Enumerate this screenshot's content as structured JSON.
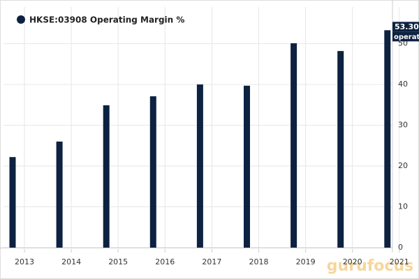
{
  "chart_data": {
    "type": "bar",
    "categories": [
      null,
      null,
      null,
      null,
      null,
      null,
      null,
      null,
      null
    ],
    "series": [
      {
        "name": "HKSE:03908 Operating Margin %",
        "color": "#0d2240",
        "values": [
          22.2,
          26.0,
          34.9,
          37.1,
          40.0,
          39.7,
          50.1,
          48.2,
          53.3
        ],
        "value_labels": [
          null,
          null,
          null,
          null,
          null,
          null,
          null,
          null,
          "53.30"
        ]
      }
    ],
    "xticks": [
      2013,
      2014,
      2015,
      2016,
      2017,
      2018,
      2019,
      2020,
      2021
    ],
    "ylim": [
      0,
      59
    ],
    "yticks": [
      0,
      10,
      20,
      30,
      40,
      50
    ],
    "annotation": "operat",
    "watermark": "gurufocus",
    "grid": true
  }
}
